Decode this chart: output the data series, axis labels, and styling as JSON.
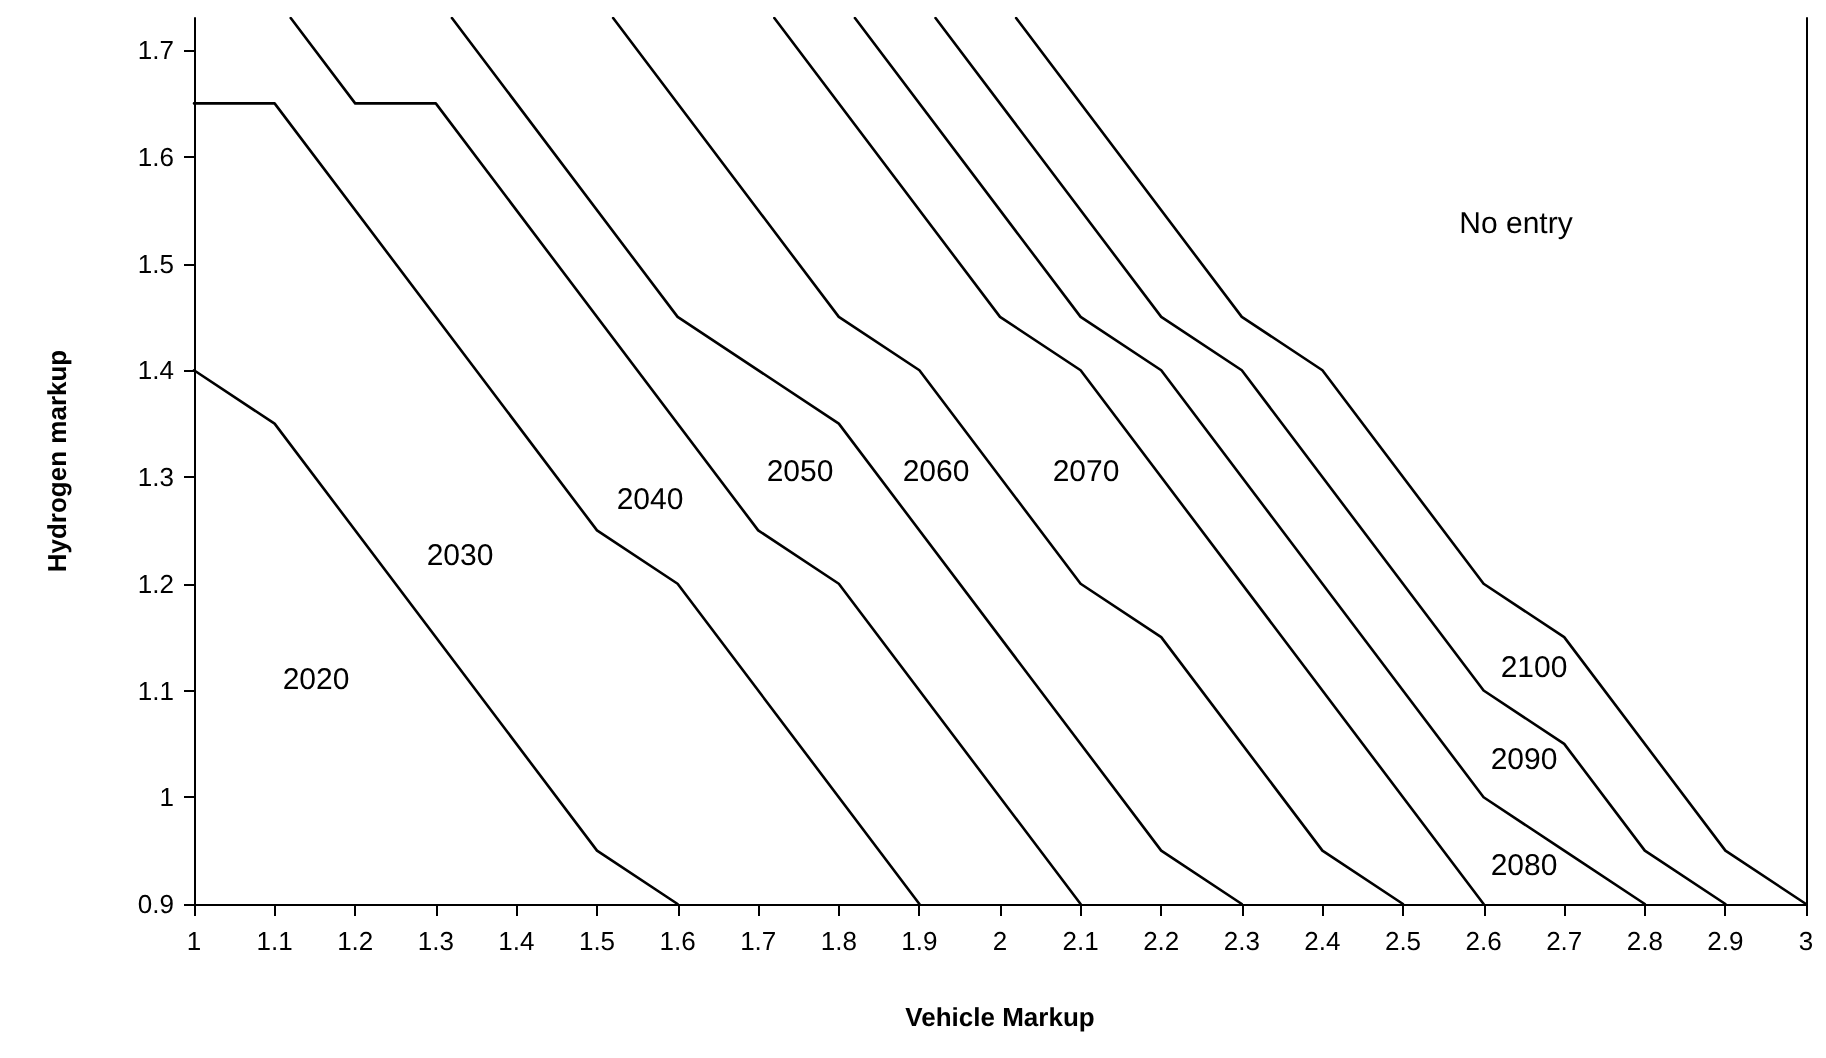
{
  "chart_data": {
    "type": "line",
    "xlabel": "Vehicle Markup",
    "ylabel": "Hydrogen markup",
    "xlim": [
      1,
      3
    ],
    "ylim": [
      0.9,
      1.73
    ],
    "xticks": [
      1,
      1.1,
      1.2,
      1.3,
      1.4,
      1.5,
      1.6,
      1.7,
      1.8,
      1.9,
      2,
      2.1,
      2.2,
      2.3,
      2.4,
      2.5,
      2.6,
      2.7,
      2.8,
      2.9,
      3
    ],
    "yticks": [
      0.9,
      1,
      1.1,
      1.2,
      1.3,
      1.4,
      1.5,
      1.6,
      1.7
    ],
    "grid": false,
    "marker": "none",
    "line_style": "solid",
    "series": [
      {
        "color": "#000000",
        "x": [
          1,
          1.1,
          1.5,
          1.6
        ],
        "values": [
          1.4,
          1.35,
          0.95,
          0.9
        ]
      },
      {
        "color": "#000000",
        "x": [
          1,
          1.1,
          1.5,
          1.6,
          1.9
        ],
        "values": [
          1.65,
          1.65,
          1.25,
          1.2,
          0.9
        ]
      },
      {
        "color": "#000000",
        "x": [
          1.12,
          1.2,
          1.3,
          1.7,
          1.8,
          2.1
        ],
        "values": [
          1.73,
          1.65,
          1.65,
          1.25,
          1.2,
          0.9
        ]
      },
      {
        "color": "#000000",
        "x": [
          1.32,
          1.6,
          1.8,
          2.2,
          2.3
        ],
        "values": [
          1.73,
          1.45,
          1.35,
          0.95,
          0.9
        ]
      },
      {
        "color": "#000000",
        "x": [
          1.52,
          1.8,
          1.9,
          2.1,
          2.2,
          2.4,
          2.5
        ],
        "values": [
          1.73,
          1.45,
          1.4,
          1.2,
          1.15,
          0.95,
          0.9
        ]
      },
      {
        "color": "#000000",
        "x": [
          1.72,
          2,
          2.1,
          2.6
        ],
        "values": [
          1.73,
          1.45,
          1.4,
          0.9
        ]
      },
      {
        "color": "#000000",
        "x": [
          1.82,
          2.1,
          2.2,
          2.6,
          2.7,
          2.8
        ],
        "values": [
          1.73,
          1.45,
          1.4,
          1,
          0.95,
          0.9
        ]
      },
      {
        "color": "#000000",
        "x": [
          1.92,
          2.2,
          2.3,
          2.6,
          2.7,
          2.8,
          2.9
        ],
        "values": [
          1.73,
          1.45,
          1.4,
          1.1,
          1.05,
          0.95,
          0.9
        ]
      },
      {
        "color": "#000000",
        "x": [
          2.02,
          2.3,
          2.4,
          2.6,
          2.7,
          2.9,
          3
        ],
        "values": [
          1.73,
          1.45,
          1.4,
          1.2,
          1.15,
          0.95,
          0.9
        ]
      }
    ],
    "annotations": [
      "2020",
      "2030",
      "2040",
      "2050",
      "2060",
      "2070",
      "2080",
      "2090",
      "2100",
      "No entry"
    ]
  }
}
